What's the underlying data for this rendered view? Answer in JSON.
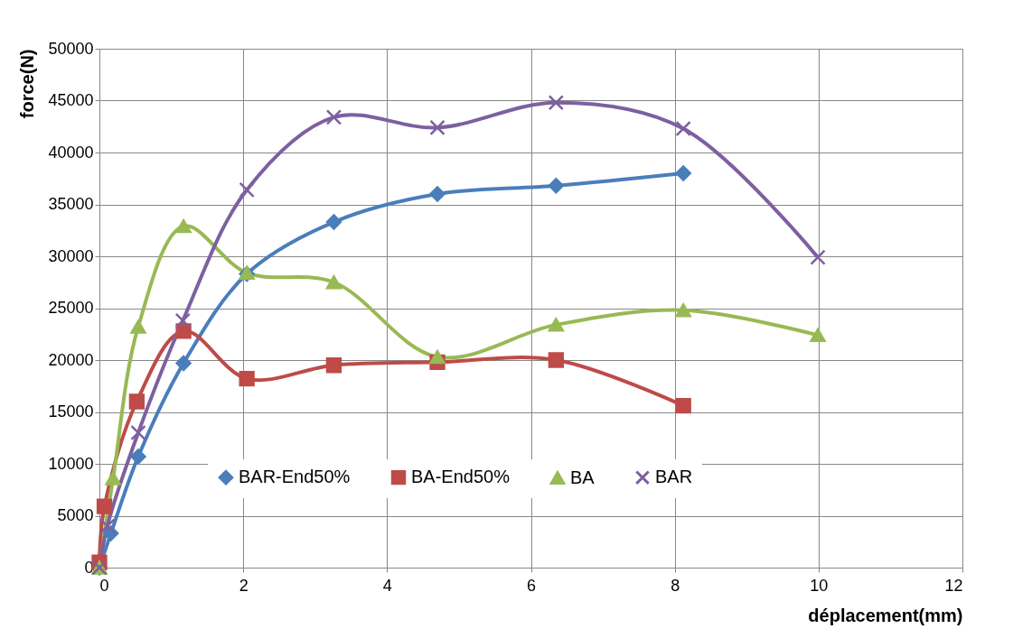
{
  "chart_data": {
    "type": "line",
    "xlabel": "déplacement(mm)",
    "ylabel": "force(N)",
    "xlim": [
      0,
      12
    ],
    "xticks": [
      0,
      2,
      4,
      6,
      8,
      10,
      12
    ],
    "ylim": [
      0,
      50000
    ],
    "yticks": [
      0,
      5000,
      10000,
      15000,
      20000,
      25000,
      30000,
      35000,
      40000,
      45000,
      50000
    ],
    "grid": true,
    "legend": "bottom",
    "line_style": "solid",
    "series": [
      {
        "name": "BAR-End50%",
        "color": "#4a7ebb",
        "marker": "diamond",
        "x": [
          0,
          0.16,
          0.54,
          1.17,
          2.05,
          3.26,
          4.7,
          6.35,
          8.12
        ],
        "values": [
          0,
          3300,
          10700,
          19700,
          28300,
          33300,
          36000,
          36800,
          38000
        ]
      },
      {
        "name": "BA-End50%",
        "color": "#be4b48",
        "marker": "square",
        "x": [
          0,
          0.07,
          0.52,
          1.17,
          2.05,
          3.26,
          4.7,
          6.35,
          8.12
        ],
        "values": [
          500,
          5900,
          16000,
          22800,
          18200,
          19500,
          19800,
          20000,
          15600
        ]
      },
      {
        "name": "BA",
        "color": "#98b954",
        "marker": "triangle",
        "x": [
          0,
          0.19,
          0.54,
          1.17,
          2.05,
          3.26,
          4.7,
          6.35,
          8.12,
          9.99
        ],
        "values": [
          0,
          8600,
          23200,
          32900,
          28400,
          27500,
          20300,
          23400,
          24800,
          22400
        ]
      },
      {
        "name": "BAR",
        "color": "#7d60a0",
        "marker": "cross",
        "x": [
          0,
          0.11,
          0.54,
          1.16,
          2.05,
          3.26,
          4.7,
          6.35,
          8.12,
          9.99
        ],
        "values": [
          0,
          4000,
          13000,
          23800,
          36400,
          43400,
          42400,
          44800,
          42300,
          29900
        ]
      }
    ]
  }
}
